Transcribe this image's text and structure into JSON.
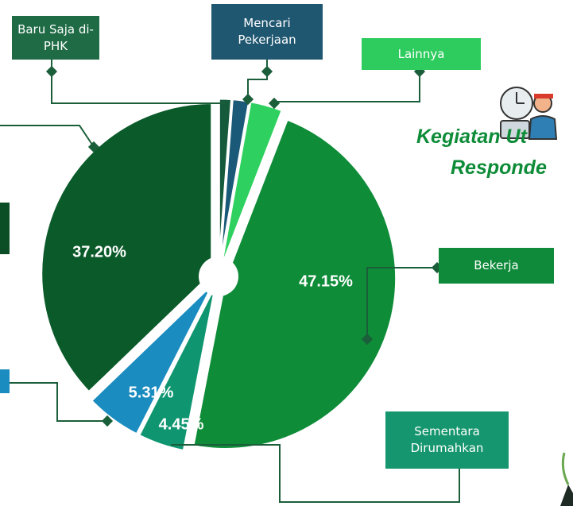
{
  "chart_data": {
    "type": "pie",
    "title_lines": [
      "Kegiatan Ut",
      "Responde"
    ],
    "categories": [
      "Baru Saja di-PHK",
      "Mencari Pekerjaan",
      "Lainnya",
      "Bekerja",
      "Sementara Dirumahkan",
      null,
      null
    ],
    "values": [
      1.2,
      1.6,
      3.09,
      47.15,
      4.45,
      5.31,
      37.2
    ],
    "value_labels": [
      null,
      null,
      null,
      "47.15%",
      "4.45%",
      "5.31%",
      "37.20%"
    ],
    "colors": [
      "#165a3c",
      "#1a5a78",
      "#2ed15f",
      "#0e8c38",
      "#0f9670",
      "#1a8cbf",
      "#0b5a2a"
    ]
  }
}
